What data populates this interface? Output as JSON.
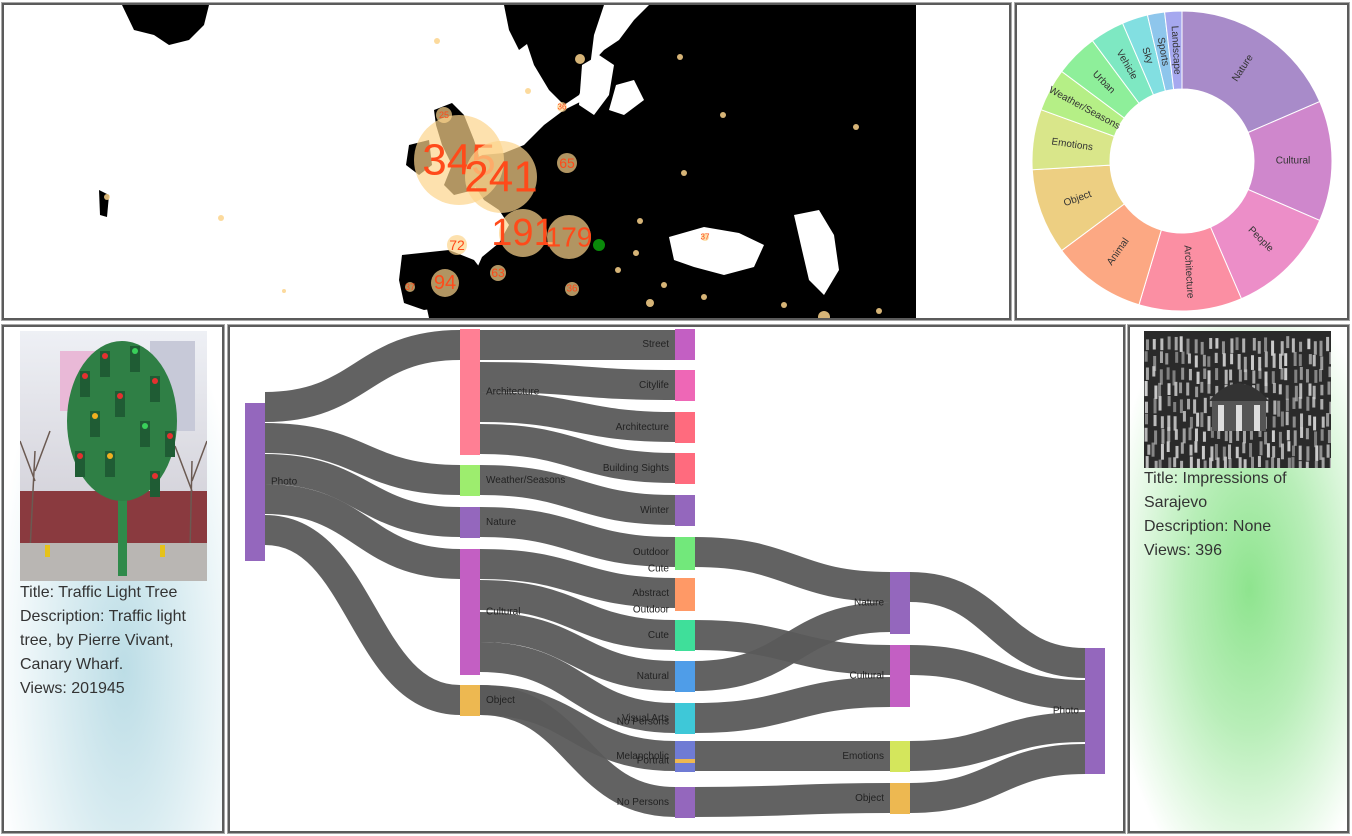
{
  "map": {
    "bubbles": [
      {
        "label": "345"
      },
      {
        "label": "241"
      },
      {
        "label": "191"
      },
      {
        "label": "179"
      },
      {
        "label": "94"
      },
      {
        "label": "72"
      },
      {
        "label": "65"
      },
      {
        "label": "63"
      },
      {
        "label": "36"
      },
      {
        "label": "37"
      },
      {
        "label": "25"
      },
      {
        "label": "36"
      },
      {
        "label": "37"
      }
    ],
    "colors": {
      "bubble_fill": "#fcd48c",
      "bubble_text": "#ff4a1a",
      "land": "#000000",
      "sea": "#ffffff",
      "marker": "#0a8a0a"
    }
  },
  "sunburst": {
    "segments": [
      {
        "label": "Nature",
        "value": 20,
        "color": "#a88bc9"
      },
      {
        "label": "Cultural",
        "value": 14,
        "color": "#cf87cc"
      },
      {
        "label": "People",
        "value": 13,
        "color": "#ec8ec8"
      },
      {
        "label": "Architecture",
        "value": 12,
        "color": "#fb8fa3"
      },
      {
        "label": "Animal",
        "value": 11,
        "color": "#fca883"
      },
      {
        "label": "Object",
        "value": 10,
        "color": "#edcf82"
      },
      {
        "label": "Emotions",
        "value": 7,
        "color": "#d9e68a"
      },
      {
        "label": "Weather/Seasons",
        "value": 5,
        "color": "#b5ef86"
      },
      {
        "label": "Urban",
        "value": 5,
        "color": "#8eef9a"
      },
      {
        "label": "Vehicle",
        "value": 4,
        "color": "#7ee8c2"
      },
      {
        "label": "Sky",
        "value": 3,
        "color": "#82dfe1"
      },
      {
        "label": "Sports",
        "value": 2,
        "color": "#8ec6ec"
      },
      {
        "label": "Landscape",
        "value": 2,
        "color": "#a6a8ef"
      }
    ]
  },
  "left_card": {
    "title": "Title: Traffic Light Tree",
    "description": "Description: Traffic light tree, by Pierre Vivant, Canary Wharf.",
    "views": "Views: 201945"
  },
  "right_card": {
    "title": "Title: Impressions of Sarajevo",
    "description": "Description: None",
    "views": "Views: 396"
  },
  "sankey": {
    "link_color": "#5a5a5a",
    "nodes": [
      {
        "id": "photo_src",
        "label": "Photo",
        "color": "#9467bd"
      },
      {
        "id": "architecture",
        "label": "Architecture",
        "color": "#ff7f94"
      },
      {
        "id": "weather",
        "label": "Weather/Seasons",
        "color": "#9ded6e"
      },
      {
        "id": "nature1",
        "label": "Nature",
        "color": "#9467bd"
      },
      {
        "id": "cultural1",
        "label": "Cultural",
        "color": "#c35fc3"
      },
      {
        "id": "object1",
        "label": "Object",
        "color": "#edb851"
      },
      {
        "id": "street",
        "label": "Street",
        "color": "#c35fc3"
      },
      {
        "id": "citylife",
        "label": "Citylife",
        "color": "#ee67b6"
      },
      {
        "id": "architecture2",
        "label": "Architecture",
        "color": "#ff6b7e"
      },
      {
        "id": "building",
        "label": "Building Sights",
        "color": "#ff6b7e"
      },
      {
        "id": "winter",
        "label": "Winter",
        "color": "#9467bd"
      },
      {
        "id": "outdoor1",
        "label": "Outdoor",
        "color": "#72e87b"
      },
      {
        "id": "cute1",
        "label": "Cute",
        "color": "#72e87b"
      },
      {
        "id": "abstract",
        "label": "Abstract",
        "color": "#ff9966"
      },
      {
        "id": "outdoor2",
        "label": "Outdoor",
        "color": "#ff9966"
      },
      {
        "id": "cute2",
        "label": "Cute",
        "color": "#3fdf9a"
      },
      {
        "id": "natural",
        "label": "Natural",
        "color": "#4f9de8"
      },
      {
        "id": "visualarts",
        "label": "Visual Arts",
        "color": "#3ec8d8"
      },
      {
        "id": "nopersons1",
        "label": "No Persons",
        "color": "#3ec8d8"
      },
      {
        "id": "melancholic",
        "label": "Melancholic",
        "color": "#6f7bd4"
      },
      {
        "id": "portrait",
        "label": "Portrait",
        "color": "#edb851"
      },
      {
        "id": "nopersons2",
        "label": "No Persons",
        "color": "#9467bd"
      },
      {
        "id": "nature2",
        "label": "Nature",
        "color": "#9467bd"
      },
      {
        "id": "cultural2",
        "label": "Cultural",
        "color": "#c35fc3"
      },
      {
        "id": "emotions",
        "label": "Emotions",
        "color": "#d4e65c"
      },
      {
        "id": "object2",
        "label": "Object",
        "color": "#edb851"
      },
      {
        "id": "photo_sink",
        "label": "Photo",
        "color": "#9467bd"
      }
    ]
  }
}
